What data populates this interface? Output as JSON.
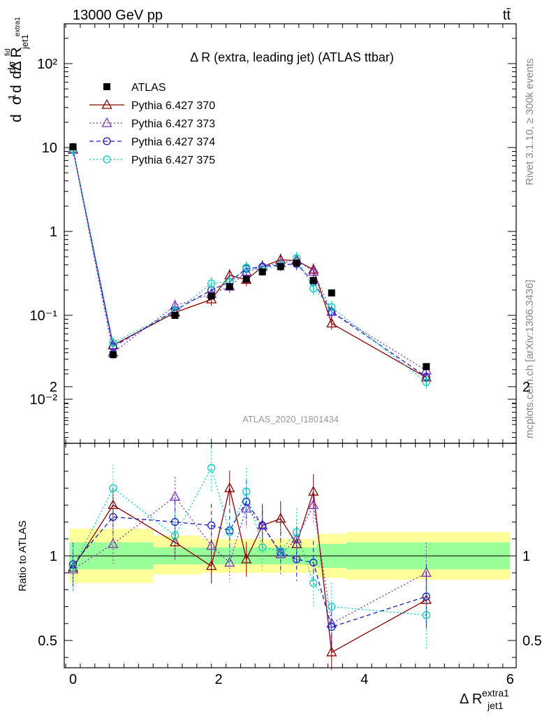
{
  "header": {
    "left": "13000 GeV pp",
    "right": "tt̄"
  },
  "side_label_top": "Rivet 3.1.10, ≥ 300k events",
  "side_label_bottom": "mcplots.cern.ch [arXiv:1306.3436]",
  "analysis_id": "ATLAS_2020_I1801434",
  "chart_data": [
    {
      "type": "scatter",
      "title": "Δ R (extra, leading jet) (ATLAS ttbar)",
      "ylabel": "1/σ dσ/dΔR",
      "xlabel": "Δ R jet1 extra1",
      "yscale": "log",
      "ylim": [
        0.003,
        300
      ],
      "xlim": [
        -0.15,
        6.1
      ],
      "ytick_labels": [
        "10⁻²",
        "10⁻¹",
        "1",
        "10",
        "10²"
      ],
      "legend": {
        "placement": "top-left"
      },
      "x": [
        0.0,
        0.55,
        1.4,
        1.9,
        2.15,
        2.38,
        2.6,
        2.85,
        3.07,
        3.3,
        3.55,
        4.85
      ],
      "series": [
        {
          "name": "ATLAS",
          "color": "#000000",
          "marker": "square",
          "values": [
            10.2,
            0.034,
            0.1,
            0.17,
            0.22,
            0.27,
            0.33,
            0.38,
            0.42,
            0.26,
            0.185,
            0.0245
          ]
        },
        {
          "name": "Pythia 6.427 370",
          "color": "#8b0000",
          "marker": "triangle-open",
          "line": "solid",
          "values": [
            9.5,
            0.044,
            0.108,
            0.155,
            0.3,
            0.265,
            0.38,
            0.46,
            0.45,
            0.35,
            0.08,
            0.0182
          ]
        },
        {
          "name": "Pythia 6.427 373",
          "color": "#7b2fbf",
          "marker": "triangle-open",
          "line": "dotted",
          "values": [
            9.4,
            0.036,
            0.13,
            0.18,
            0.22,
            0.33,
            0.38,
            0.42,
            0.46,
            0.33,
            0.11,
            0.022
          ]
        },
        {
          "name": "Pythia 6.427 374",
          "color": "#1a1acc",
          "marker": "circle-open",
          "line": "dashed",
          "values": [
            9.6,
            0.042,
            0.115,
            0.2,
            0.25,
            0.36,
            0.38,
            0.4,
            0.41,
            0.25,
            0.11,
            0.0185
          ]
        },
        {
          "name": "Pythia 6.427 375",
          "color": "#00cdc0",
          "marker": "circle-open",
          "line": "dotted",
          "values": [
            9.5,
            0.047,
            0.11,
            0.24,
            0.25,
            0.37,
            0.35,
            0.4,
            0.48,
            0.21,
            0.125,
            0.016
          ]
        }
      ]
    },
    {
      "type": "scatter",
      "ylabel": "Ratio to ATLAS",
      "ylim": [
        0.35,
        2.35
      ],
      "xlim": [
        -0.15,
        6.1
      ],
      "x_ticks": [
        0,
        2,
        4,
        6
      ],
      "y_ticks": [
        0.5,
        1,
        2
      ],
      "x": [
        0.0,
        0.55,
        1.4,
        1.9,
        2.15,
        2.38,
        2.6,
        2.85,
        3.07,
        3.3,
        3.55,
        4.85
      ],
      "bands": [
        {
          "from": -0.05,
          "to": 1.1,
          "yellow": [
            0.84,
            1.16
          ],
          "green": [
            0.92,
            1.08
          ]
        },
        {
          "from": 1.1,
          "to": 1.75,
          "yellow": [
            0.89,
            1.12
          ],
          "green": [
            0.95,
            1.05
          ]
        },
        {
          "from": 1.75,
          "to": 3.35,
          "yellow": [
            0.9,
            1.1
          ],
          "green": [
            0.95,
            1.05
          ]
        },
        {
          "from": 3.35,
          "to": 3.75,
          "yellow": [
            0.87,
            1.13
          ],
          "green": [
            0.93,
            1.07
          ]
        },
        {
          "from": 3.75,
          "to": 6.0,
          "yellow": [
            0.86,
            1.14
          ],
          "green": [
            0.92,
            1.08
          ]
        }
      ],
      "series": [
        {
          "name": "Pythia 6.427 370",
          "values": [
            0.93,
            1.3,
            1.08,
            0.94,
            1.4,
            0.98,
            1.18,
            1.22,
            1.07,
            1.38,
            0.43,
            0.74
          ]
        },
        {
          "name": "Pythia 6.427 373",
          "values": [
            0.92,
            1.07,
            1.35,
            1.06,
            0.96,
            1.28,
            1.18,
            1.01,
            1.1,
            1.3,
            0.6,
            0.9
          ]
        },
        {
          "name": "Pythia 6.427 374",
          "values": [
            0.95,
            1.23,
            1.2,
            1.18,
            1.15,
            1.32,
            1.18,
            1.02,
            0.98,
            0.96,
            0.58,
            0.76
          ]
        },
        {
          "name": "Pythia 6.427 375",
          "values": [
            0.93,
            1.4,
            1.12,
            1.52,
            1.14,
            1.38,
            1.05,
            1.03,
            1.14,
            0.84,
            0.7,
            0.65
          ]
        }
      ]
    }
  ]
}
